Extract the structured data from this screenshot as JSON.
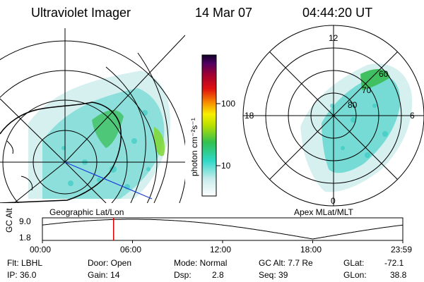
{
  "header": {
    "instrument": "Ultraviolet Imager",
    "date": "14 Mar 07",
    "time": "04:44:20 UT"
  },
  "colorbar": {
    "unit_label": "photon cm⁻²s⁻¹",
    "ticks": [
      "100",
      "10"
    ]
  },
  "panels": {
    "left_label": "Geographic Lat/Lon",
    "right_label": "Apex  MLat/MLT",
    "polar_labels": {
      "top": "12",
      "left": "18",
      "right": "6",
      "bottom": "0",
      "lat60": "60",
      "lat70": "70",
      "lat80": "80"
    }
  },
  "timeline": {
    "axis_title": "GC Alt",
    "y_top": "9.0",
    "y_bottom": "1.8",
    "x_ticks": [
      "00:00",
      "06:00",
      "12:00",
      "18:00",
      "23:59"
    ],
    "current_hour": 4.74,
    "marker_color": "#dd0000"
  },
  "info": {
    "flt": "Flt: LBHL",
    "ip": "IP: 36.0",
    "door": "Door: Open",
    "gain": "Gain: 14",
    "mode": "Mode: Normal",
    "dsp_label": "Dsp:",
    "dsp_value": "2.8",
    "gc_alt": "GC Alt: 7.7 Re",
    "seq": "Seq: 39",
    "glat_label": "GLat:",
    "glat_value": "-72.1",
    "glon_label": "GLon:",
    "glon_value": "38.8"
  },
  "colors": {
    "aurora_low": "#c8ecec",
    "aurora_mid": "#40d8c8",
    "aurora_high": "#30c050",
    "aurora_peak": "#a8e000"
  }
}
